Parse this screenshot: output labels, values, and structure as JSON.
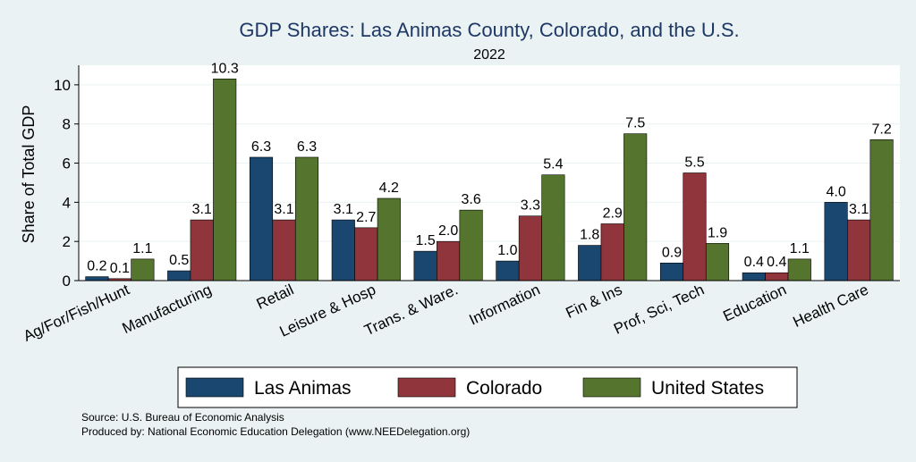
{
  "chart_data": {
    "type": "bar",
    "title": "GDP Shares: Las Animas County, Colorado, and the U.S.",
    "subtitle": "2022",
    "ylabel": "Share of Total GDP",
    "xlabel": "",
    "ylim": [
      0,
      11
    ],
    "yticks": [
      "0",
      "2",
      "4",
      "6",
      "8",
      "10"
    ],
    "grid": true,
    "legend_position": "bottom",
    "categories": [
      "Ag/For/Fish/Hunt",
      "Manufacturing",
      "Retail",
      "Leisure & Hosp",
      "Trans. & Ware.",
      "Information",
      "Fin & Ins",
      "Prof, Sci, Tech",
      "Education",
      "Health Care"
    ],
    "series": [
      {
        "name": "Las Animas",
        "color": "#1a476f",
        "values": [
          0.2,
          0.5,
          6.3,
          3.1,
          1.5,
          1.0,
          1.8,
          0.9,
          0.4,
          4.0
        ],
        "labels": [
          "0.2",
          "0.5",
          "6.3",
          "3.1",
          "1.5",
          "1.0",
          "1.8",
          "0.9",
          "0.4",
          "4.0"
        ]
      },
      {
        "name": "Colorado",
        "color": "#90353b",
        "values": [
          0.1,
          3.1,
          3.1,
          2.7,
          2.0,
          3.3,
          2.9,
          5.5,
          0.4,
          3.1
        ],
        "labels": [
          "0.1",
          "3.1",
          "3.1",
          "2.7",
          "2.0",
          "3.3",
          "2.9",
          "5.5",
          "0.4",
          "3.1"
        ]
      },
      {
        "name": "United States",
        "color": "#55752f",
        "values": [
          1.1,
          10.3,
          6.3,
          4.2,
          3.6,
          5.4,
          7.5,
          1.9,
          1.1,
          7.2
        ],
        "labels": [
          "1.1",
          "10.3",
          "6.3",
          "4.2",
          "3.6",
          "5.4",
          "7.5",
          "1.9",
          "1.1",
          "7.2"
        ]
      }
    ],
    "notes": [
      "Source: U.S. Bureau of Economic Analysis",
      "Produced by: National Economic Education Delegation (www.NEEDelegation.org)"
    ]
  },
  "colors": {
    "background": "#eaf2f3",
    "plot_background": "#ffffff",
    "title": "#1e3866",
    "grid": "#eaf2f3"
  }
}
